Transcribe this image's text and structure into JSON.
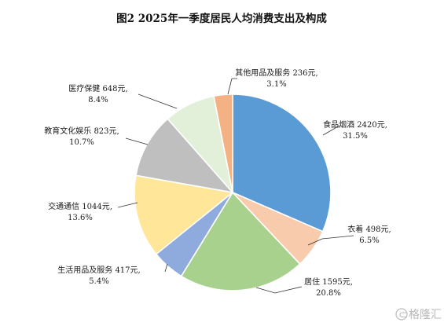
{
  "chart_data": {
    "type": "pie",
    "title": "图2    2025年一季度居民人均消费支出及构成",
    "start_angle_deg": 0,
    "direction": "clockwise",
    "slices": [
      {
        "name": "食品烟酒",
        "value": 2420,
        "unit": "元",
        "percent": "31.5%",
        "value_text": "2420元,",
        "color": "#5b9bd5"
      },
      {
        "name": "衣着",
        "value": 498,
        "unit": "元",
        "percent": "6.5%",
        "value_text": "498元,",
        "color": "#f8cbad"
      },
      {
        "name": "居住",
        "value": 1595,
        "unit": "元",
        "percent": "20.8%",
        "value_text": "1595元,",
        "color": "#a9d18e"
      },
      {
        "name": "生活用品及服务",
        "value": 417,
        "unit": "元",
        "percent": "5.4%",
        "value_text": "417元,",
        "color": "#8faadc"
      },
      {
        "name": "交通通信",
        "value": 1044,
        "unit": "元",
        "percent": "13.6%",
        "value_text": "1044元,",
        "color": "#ffe699"
      },
      {
        "name": "教育文化娱乐",
        "value": 823,
        "unit": "元",
        "percent": "10.7%",
        "value_text": "823元,",
        "color": "#bfbfbf"
      },
      {
        "name": "医疗保健",
        "value": 648,
        "unit": "元",
        "percent": "8.4%",
        "value_text": "648元,",
        "color": "#e2f0d9"
      },
      {
        "name": "其他用品及服务",
        "value": 236,
        "unit": "元",
        "percent": "3.1%",
        "value_text": "236元,",
        "color": "#f4b183"
      }
    ]
  },
  "watermark": {
    "text": "格隆汇",
    "icon": "gelonghui-logo-icon"
  }
}
